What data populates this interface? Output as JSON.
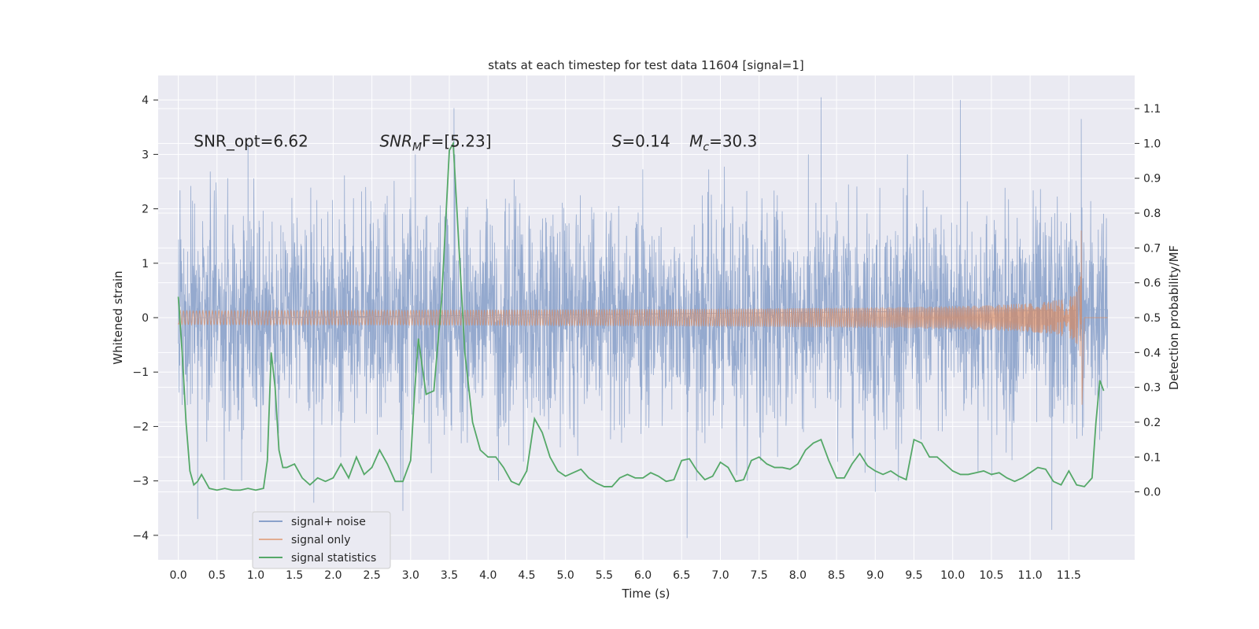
{
  "chart_data": {
    "type": "line",
    "title": "stats at each timestep for test data 11604 [signal=1]",
    "xlabel": "Time (s)",
    "ylabel": "Whitened strain",
    "y2label": "Detection probability/MF",
    "xlim": [
      -0.26,
      12.35
    ],
    "ylim": [
      -4.45,
      4.45
    ],
    "y2lim": [
      -0.195,
      1.195
    ],
    "x_ticks": [
      "0.0",
      "0.5",
      "1.0",
      "1.5",
      "2.0",
      "2.5",
      "3.0",
      "3.5",
      "4.0",
      "4.5",
      "5.0",
      "5.5",
      "6.0",
      "6.5",
      "7.0",
      "7.5",
      "8.0",
      "8.5",
      "9.0",
      "9.5",
      "10.0",
      "10.5",
      "11.0",
      "11.5"
    ],
    "y_ticks": [
      "4",
      "3",
      "2",
      "1",
      "0",
      "−1",
      "−2",
      "−3",
      "−4"
    ],
    "y2_ticks": [
      "1.1",
      "1.0",
      "0.9",
      "0.8",
      "0.7",
      "0.6",
      "0.5",
      "0.4",
      "0.3",
      "0.2",
      "0.1",
      "0.0"
    ],
    "grid": true,
    "legend_position": "lower-left",
    "annotations": [
      {
        "name": "snr-opt",
        "text": "SNR_opt=6.62",
        "x": 0.2,
        "y": 3.2
      },
      {
        "name": "snr-mf",
        "prefix": "SNR",
        "sub": "M",
        "rest": "F=[5.23]",
        "x": 2.6,
        "y": 3.2
      },
      {
        "name": "spin",
        "italic": "S",
        "rest": "=0.14",
        "x": 5.6,
        "y": 3.2
      },
      {
        "name": "chirp-mass",
        "prefix": "M",
        "sub": "c",
        "rest": "=30.3",
        "x": 6.6,
        "y": 3.2
      }
    ],
    "series": [
      {
        "name": "signal+ noise",
        "color": "#4c72b0",
        "axis": "left",
        "duration": 12.0,
        "envelope_std": 1.0,
        "peaks": [
          [
            0.9,
            3.2
          ],
          [
            2.9,
            -3.55
          ],
          [
            3.56,
            3.85
          ],
          [
            6.57,
            -4.05
          ],
          [
            8.3,
            4.05
          ],
          [
            10.1,
            4.0
          ],
          [
            11.28,
            -3.9
          ],
          [
            11.66,
            3.65
          ],
          [
            1.75,
            -3.4
          ],
          [
            9.0,
            -3.2
          ],
          [
            0.25,
            -3.7
          ]
        ]
      },
      {
        "name": "signal only",
        "color": "#dd8452",
        "axis": "left",
        "merger_time": 11.66,
        "peak_amplitude": 1.6
      },
      {
        "name": "signal statistics",
        "color": "#55a868",
        "axis": "right",
        "x": [
          0.0,
          0.05,
          0.1,
          0.15,
          0.2,
          0.25,
          0.3,
          0.4,
          0.5,
          0.6,
          0.7,
          0.8,
          0.9,
          1.0,
          1.1,
          1.15,
          1.2,
          1.25,
          1.3,
          1.35,
          1.4,
          1.5,
          1.6,
          1.7,
          1.8,
          1.9,
          2.0,
          2.1,
          2.2,
          2.3,
          2.4,
          2.5,
          2.6,
          2.7,
          2.8,
          2.9,
          3.0,
          3.05,
          3.1,
          3.2,
          3.3,
          3.4,
          3.5,
          3.55,
          3.6,
          3.7,
          3.8,
          3.9,
          4.0,
          4.1,
          4.2,
          4.3,
          4.4,
          4.5,
          4.6,
          4.7,
          4.8,
          4.9,
          5.0,
          5.1,
          5.2,
          5.3,
          5.4,
          5.5,
          5.6,
          5.7,
          5.8,
          5.9,
          6.0,
          6.1,
          6.2,
          6.3,
          6.4,
          6.5,
          6.6,
          6.7,
          6.8,
          6.9,
          7.0,
          7.1,
          7.2,
          7.3,
          7.4,
          7.5,
          7.6,
          7.7,
          7.8,
          7.9,
          8.0,
          8.1,
          8.2,
          8.3,
          8.4,
          8.5,
          8.6,
          8.7,
          8.8,
          8.9,
          9.0,
          9.1,
          9.2,
          9.3,
          9.4,
          9.5,
          9.6,
          9.7,
          9.8,
          9.9,
          10.0,
          10.1,
          10.2,
          10.3,
          10.4,
          10.5,
          10.6,
          10.7,
          10.8,
          10.9,
          11.0,
          11.1,
          11.2,
          11.3,
          11.4,
          11.5,
          11.6,
          11.7,
          11.8,
          11.85,
          11.9,
          11.95
        ],
        "values": [
          0.56,
          0.4,
          0.2,
          0.06,
          0.02,
          0.03,
          0.05,
          0.01,
          0.005,
          0.01,
          0.005,
          0.005,
          0.01,
          0.005,
          0.01,
          0.09,
          0.4,
          0.3,
          0.12,
          0.07,
          0.07,
          0.08,
          0.04,
          0.02,
          0.04,
          0.03,
          0.04,
          0.08,
          0.04,
          0.1,
          0.05,
          0.07,
          0.12,
          0.08,
          0.03,
          0.03,
          0.09,
          0.28,
          0.44,
          0.28,
          0.29,
          0.55,
          0.98,
          1.0,
          0.8,
          0.4,
          0.2,
          0.12,
          0.1,
          0.1,
          0.07,
          0.03,
          0.02,
          0.06,
          0.21,
          0.17,
          0.1,
          0.06,
          0.045,
          0.055,
          0.065,
          0.04,
          0.025,
          0.015,
          0.015,
          0.04,
          0.05,
          0.04,
          0.04,
          0.055,
          0.045,
          0.03,
          0.035,
          0.09,
          0.095,
          0.06,
          0.035,
          0.045,
          0.085,
          0.07,
          0.03,
          0.035,
          0.09,
          0.1,
          0.08,
          0.07,
          0.07,
          0.065,
          0.08,
          0.12,
          0.14,
          0.15,
          0.09,
          0.04,
          0.04,
          0.08,
          0.11,
          0.075,
          0.06,
          0.05,
          0.06,
          0.045,
          0.035,
          0.15,
          0.14,
          0.1,
          0.1,
          0.08,
          0.06,
          0.05,
          0.05,
          0.055,
          0.06,
          0.05,
          0.055,
          0.04,
          0.03,
          0.04,
          0.055,
          0.07,
          0.065,
          0.03,
          0.02,
          0.06,
          0.02,
          0.015,
          0.04,
          0.2,
          0.32,
          0.29
        ]
      }
    ]
  }
}
